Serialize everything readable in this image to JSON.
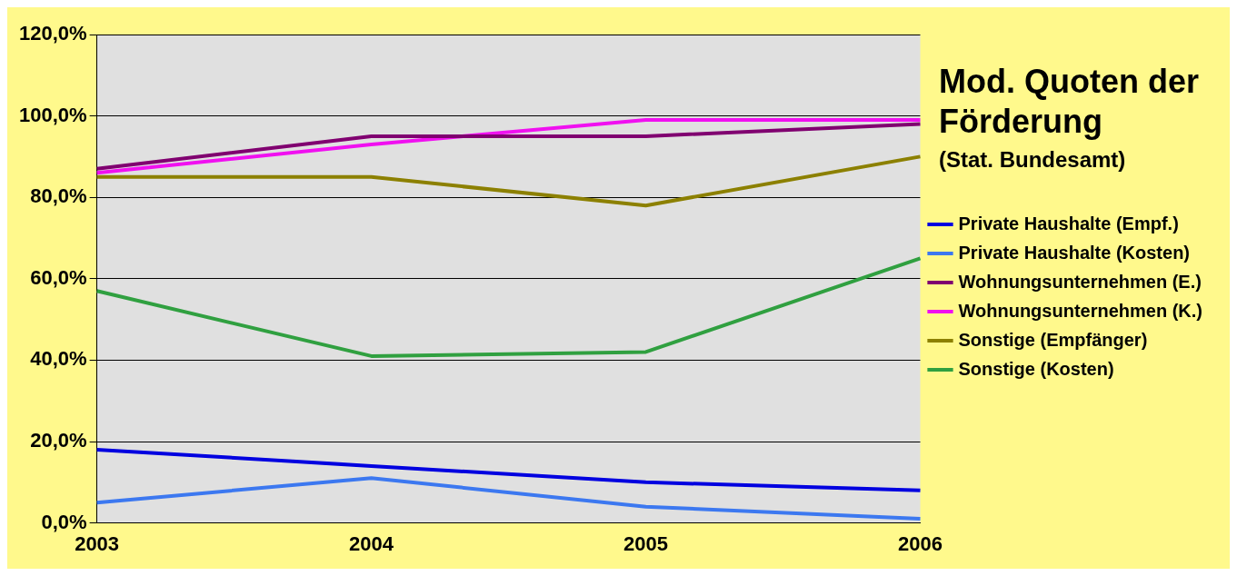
{
  "chart_data": {
    "type": "line",
    "title": "Mod. Quoten der Förderung",
    "subtitle": "(Stat. Bundesamt)",
    "categories": [
      "2003",
      "2004",
      "2005",
      "2006"
    ],
    "series": [
      {
        "name": "Private Haushalte (Empf.)",
        "color": "#0000e0",
        "values": [
          18,
          14,
          10,
          8
        ]
      },
      {
        "name": "Private Haushalte (Kosten)",
        "color": "#3c78f0",
        "values": [
          5,
          11,
          4,
          1
        ]
      },
      {
        "name": "Wohnungsunternehmen (E.)",
        "color": "#800070",
        "values": [
          87,
          95,
          95,
          98
        ]
      },
      {
        "name": "Wohnungsunternehmen (K.)",
        "color": "#f010f0",
        "values": [
          86,
          93,
          99,
          99
        ]
      },
      {
        "name": "Sonstige (Empfänger)",
        "color": "#8c8000",
        "values": [
          85,
          85,
          78,
          90
        ]
      },
      {
        "name": "Sonstige (Kosten)",
        "color": "#30a040",
        "values": [
          57,
          41,
          42,
          65
        ]
      }
    ],
    "ylim": [
      0,
      120
    ],
    "yticks": [
      {
        "value": 0,
        "label": "0,0%"
      },
      {
        "value": 20,
        "label": "20,0%"
      },
      {
        "value": 40,
        "label": "40,0%"
      },
      {
        "value": 60,
        "label": "60,0%"
      },
      {
        "value": 80,
        "label": "80,0%"
      },
      {
        "value": 100,
        "label": "100,0%"
      },
      {
        "value": 120,
        "label": "120,0%"
      }
    ],
    "grid": "y",
    "legend": "right",
    "marker": "none",
    "line_style": "solid"
  }
}
